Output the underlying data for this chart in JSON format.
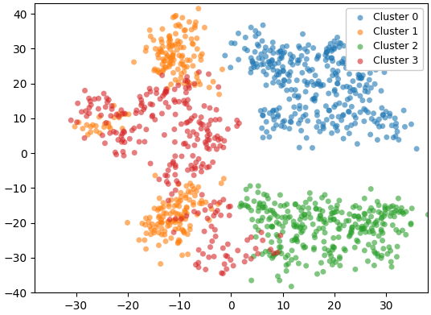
{
  "title": "",
  "xlabel": "",
  "ylabel": "",
  "xlim": [
    -38,
    38
  ],
  "ylim": [
    -40,
    43
  ],
  "cluster_labels": [
    "Cluster 0",
    "Cluster 1",
    "Cluster 2",
    "Cluster 3"
  ],
  "cluster_colors": [
    "#1f77b4",
    "#ff7f0e",
    "#2ca02c",
    "#d62728"
  ],
  "alpha": 0.6,
  "marker_size": 25,
  "legend_loc": "upper right",
  "figsize": [
    5.36,
    3.91
  ],
  "dpi": 100,
  "seed": 7
}
